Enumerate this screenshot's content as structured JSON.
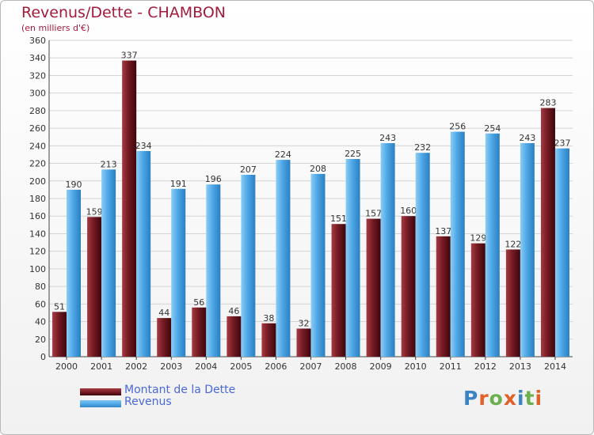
{
  "title": "Revenus/Dette - CHAMBON",
  "subtitle": "(en milliers d'€)",
  "logo": {
    "text": "Proxiti",
    "letter_colors": [
      "#3b84c4",
      "#e0622a",
      "#6ab04c",
      "#e0622a",
      "#3b84c4",
      "#6ab04c",
      "#e0622a"
    ]
  },
  "colors": {
    "debt_bar": "#741a22",
    "revenue_bar": "#4ea7e6",
    "title": "#a21b3c",
    "legend_text": "#4a68d6",
    "grid": "#d4d4d4"
  },
  "legend": [
    {
      "label": "Montant de la Dette",
      "color": "#741a22"
    },
    {
      "label": "Revenus",
      "color": "#4ea7e6"
    }
  ],
  "chart_data": {
    "type": "bar",
    "categories": [
      "2000",
      "2001",
      "2002",
      "2003",
      "2004",
      "2005",
      "2006",
      "2007",
      "2008",
      "2009",
      "2010",
      "2011",
      "2012",
      "2013",
      "2014"
    ],
    "series": [
      {
        "name": "Montant de la Dette",
        "values": [
          51,
          159,
          337,
          44,
          56,
          46,
          38,
          32,
          151,
          157,
          160,
          137,
          129,
          122,
          283
        ]
      },
      {
        "name": "Revenus",
        "values": [
          190,
          213,
          234,
          191,
          196,
          207,
          224,
          208,
          225,
          243,
          232,
          256,
          254,
          243,
          237
        ]
      }
    ],
    "ylim": [
      0,
      360
    ],
    "ytick_step": 20,
    "grid": true,
    "legend_position": "bottom-left"
  }
}
